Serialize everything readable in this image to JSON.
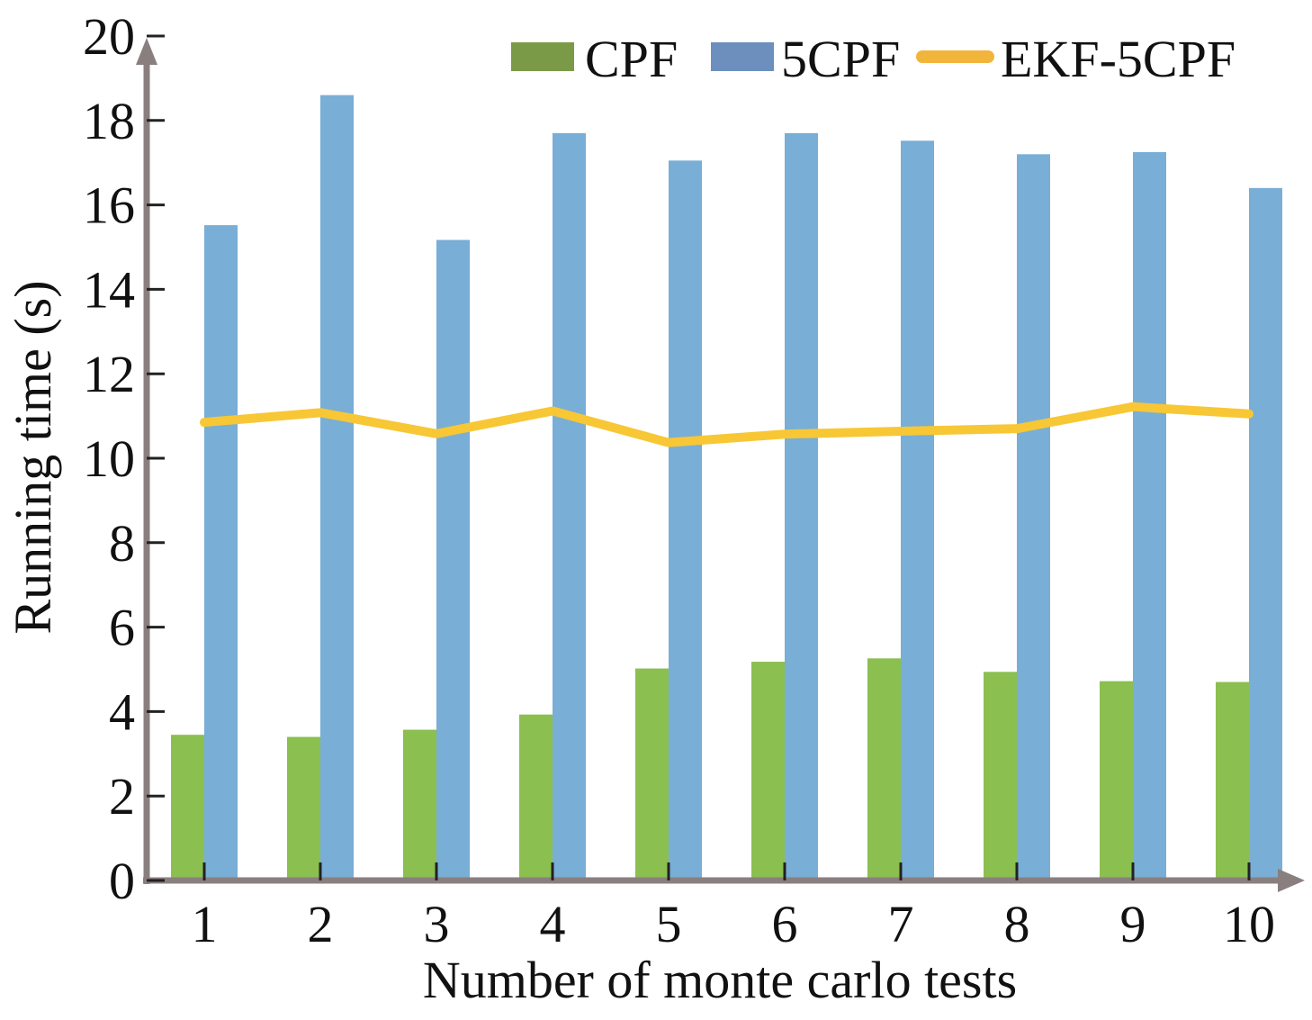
{
  "chart_data": {
    "type": "bar",
    "title": "",
    "xlabel": "Number of monte carlo tests",
    "ylabel": "Running time (s)",
    "categories": [
      "1",
      "2",
      "3",
      "4",
      "5",
      "6",
      "7",
      "8",
      "9",
      "10"
    ],
    "ylim": [
      0,
      20
    ],
    "yticks": [
      "0",
      "2",
      "4",
      "6",
      "8",
      "10",
      "12",
      "14",
      "16",
      "18",
      "20"
    ],
    "grid": false,
    "legend_position": "top-right",
    "series": [
      {
        "name": "CPF",
        "kind": "bar",
        "color": "#8bbf50",
        "legend_color": "#7a9a48",
        "values": [
          3.45,
          3.4,
          3.57,
          3.93,
          5.02,
          5.18,
          5.26,
          4.94,
          4.72,
          4.7
        ]
      },
      {
        "name": "5CPF",
        "kind": "bar",
        "color": "#79aed6",
        "legend_color": "#6c8fbe",
        "values": [
          15.52,
          18.6,
          15.17,
          17.7,
          17.05,
          17.7,
          17.52,
          17.2,
          17.25,
          16.4
        ]
      },
      {
        "name": "EKF-5CPF",
        "kind": "line",
        "color": "#f7c735",
        "legend_color": "#f2b53c",
        "values": [
          10.85,
          11.08,
          10.58,
          11.12,
          10.37,
          10.57,
          10.64,
          10.7,
          11.22,
          11.05
        ]
      }
    ],
    "axis_color": "#8a7f7f"
  }
}
